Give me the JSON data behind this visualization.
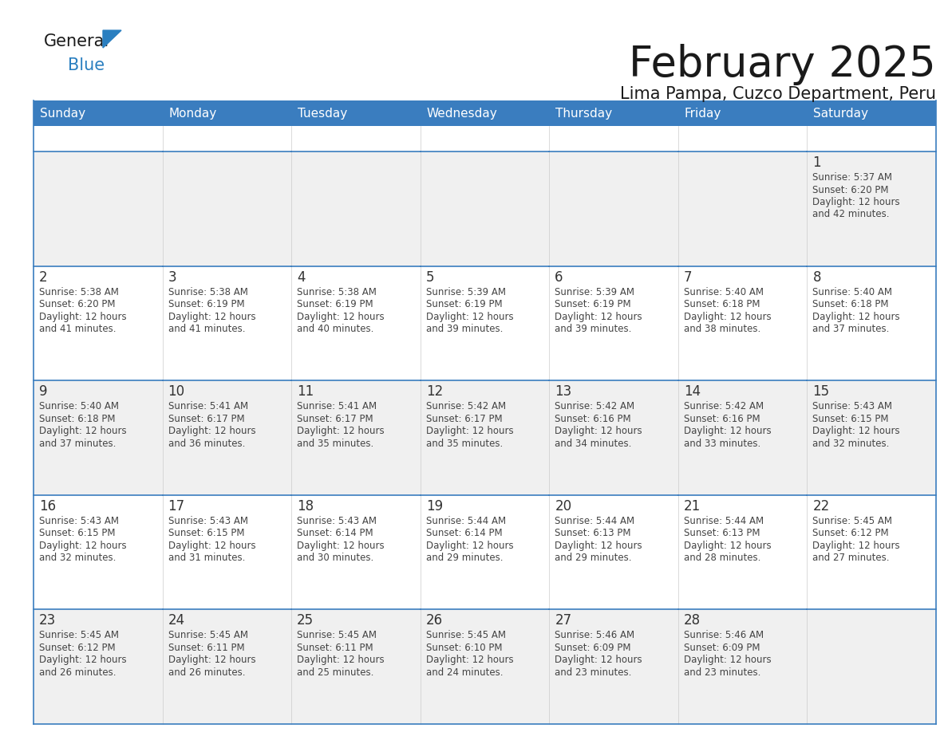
{
  "title": "February 2025",
  "subtitle": "Lima Pampa, Cuzco Department, Peru",
  "header_bg": "#3a7dbf",
  "header_text": "#ffffff",
  "cell_bg_white": "#ffffff",
  "cell_bg_gray": "#f0f0f0",
  "border_color": "#3a7dbf",
  "day_names": [
    "Sunday",
    "Monday",
    "Tuesday",
    "Wednesday",
    "Thursday",
    "Friday",
    "Saturday"
  ],
  "title_color": "#1a1a1a",
  "subtitle_color": "#1a1a1a",
  "day_num_color": "#333333",
  "text_color": "#444444",
  "logo_general_color": "#1a1a1a",
  "logo_blue_color": "#2a7fc0",
  "calendar_data": [
    [
      null,
      null,
      null,
      null,
      null,
      null,
      {
        "day": 1,
        "sunrise": "5:37 AM",
        "sunset": "6:20 PM",
        "daylight": "12 hours",
        "daylight2": "and 42 minutes."
      }
    ],
    [
      {
        "day": 2,
        "sunrise": "5:38 AM",
        "sunset": "6:20 PM",
        "daylight": "12 hours",
        "daylight2": "and 41 minutes."
      },
      {
        "day": 3,
        "sunrise": "5:38 AM",
        "sunset": "6:19 PM",
        "daylight": "12 hours",
        "daylight2": "and 41 minutes."
      },
      {
        "day": 4,
        "sunrise": "5:38 AM",
        "sunset": "6:19 PM",
        "daylight": "12 hours",
        "daylight2": "and 40 minutes."
      },
      {
        "day": 5,
        "sunrise": "5:39 AM",
        "sunset": "6:19 PM",
        "daylight": "12 hours",
        "daylight2": "and 39 minutes."
      },
      {
        "day": 6,
        "sunrise": "5:39 AM",
        "sunset": "6:19 PM",
        "daylight": "12 hours",
        "daylight2": "and 39 minutes."
      },
      {
        "day": 7,
        "sunrise": "5:40 AM",
        "sunset": "6:18 PM",
        "daylight": "12 hours",
        "daylight2": "and 38 minutes."
      },
      {
        "day": 8,
        "sunrise": "5:40 AM",
        "sunset": "6:18 PM",
        "daylight": "12 hours",
        "daylight2": "and 37 minutes."
      }
    ],
    [
      {
        "day": 9,
        "sunrise": "5:40 AM",
        "sunset": "6:18 PM",
        "daylight": "12 hours",
        "daylight2": "and 37 minutes."
      },
      {
        "day": 10,
        "sunrise": "5:41 AM",
        "sunset": "6:17 PM",
        "daylight": "12 hours",
        "daylight2": "and 36 minutes."
      },
      {
        "day": 11,
        "sunrise": "5:41 AM",
        "sunset": "6:17 PM",
        "daylight": "12 hours",
        "daylight2": "and 35 minutes."
      },
      {
        "day": 12,
        "sunrise": "5:42 AM",
        "sunset": "6:17 PM",
        "daylight": "12 hours",
        "daylight2": "and 35 minutes."
      },
      {
        "day": 13,
        "sunrise": "5:42 AM",
        "sunset": "6:16 PM",
        "daylight": "12 hours",
        "daylight2": "and 34 minutes."
      },
      {
        "day": 14,
        "sunrise": "5:42 AM",
        "sunset": "6:16 PM",
        "daylight": "12 hours",
        "daylight2": "and 33 minutes."
      },
      {
        "day": 15,
        "sunrise": "5:43 AM",
        "sunset": "6:15 PM",
        "daylight": "12 hours",
        "daylight2": "and 32 minutes."
      }
    ],
    [
      {
        "day": 16,
        "sunrise": "5:43 AM",
        "sunset": "6:15 PM",
        "daylight": "12 hours",
        "daylight2": "and 32 minutes."
      },
      {
        "day": 17,
        "sunrise": "5:43 AM",
        "sunset": "6:15 PM",
        "daylight": "12 hours",
        "daylight2": "and 31 minutes."
      },
      {
        "day": 18,
        "sunrise": "5:43 AM",
        "sunset": "6:14 PM",
        "daylight": "12 hours",
        "daylight2": "and 30 minutes."
      },
      {
        "day": 19,
        "sunrise": "5:44 AM",
        "sunset": "6:14 PM",
        "daylight": "12 hours",
        "daylight2": "and 29 minutes."
      },
      {
        "day": 20,
        "sunrise": "5:44 AM",
        "sunset": "6:13 PM",
        "daylight": "12 hours",
        "daylight2": "and 29 minutes."
      },
      {
        "day": 21,
        "sunrise": "5:44 AM",
        "sunset": "6:13 PM",
        "daylight": "12 hours",
        "daylight2": "and 28 minutes."
      },
      {
        "day": 22,
        "sunrise": "5:45 AM",
        "sunset": "6:12 PM",
        "daylight": "12 hours",
        "daylight2": "and 27 minutes."
      }
    ],
    [
      {
        "day": 23,
        "sunrise": "5:45 AM",
        "sunset": "6:12 PM",
        "daylight": "12 hours",
        "daylight2": "and 26 minutes."
      },
      {
        "day": 24,
        "sunrise": "5:45 AM",
        "sunset": "6:11 PM",
        "daylight": "12 hours",
        "daylight2": "and 26 minutes."
      },
      {
        "day": 25,
        "sunrise": "5:45 AM",
        "sunset": "6:11 PM",
        "daylight": "12 hours",
        "daylight2": "and 25 minutes."
      },
      {
        "day": 26,
        "sunrise": "5:45 AM",
        "sunset": "6:10 PM",
        "daylight": "12 hours",
        "daylight2": "and 24 minutes."
      },
      {
        "day": 27,
        "sunrise": "5:46 AM",
        "sunset": "6:09 PM",
        "daylight": "12 hours",
        "daylight2": "and 23 minutes."
      },
      {
        "day": 28,
        "sunrise": "5:46 AM",
        "sunset": "6:09 PM",
        "daylight": "12 hours",
        "daylight2": "and 23 minutes."
      },
      null
    ]
  ],
  "row_bg": [
    "#f0f0f0",
    "#ffffff",
    "#f0f0f0",
    "#ffffff",
    "#f0f0f0"
  ]
}
